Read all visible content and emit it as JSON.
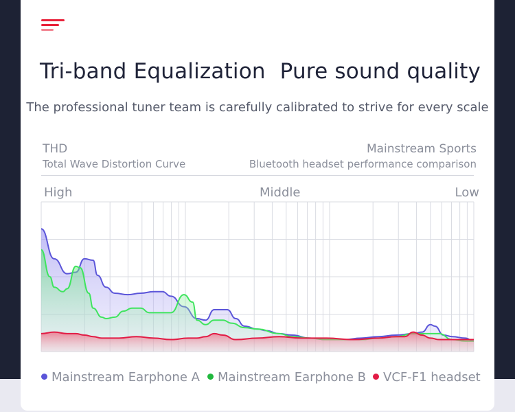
{
  "header": {
    "title_left": "Tri-band Equalization",
    "title_right": "Pure sound quality",
    "subtitle": "The professional tuner team is carefully calibrated to strive for every scale"
  },
  "info": {
    "left_title": "THD",
    "left_caption": "Total Wave Distortion Curve",
    "right_title": "Mainstream Sports",
    "right_caption": "Bluetooth headset performance comparison"
  },
  "chart_data": {
    "type": "area",
    "title": "",
    "band_labels": [
      "High",
      "Middle",
      "Low"
    ],
    "xlim": [
      0,
      100
    ],
    "ylim": [
      0,
      100
    ],
    "grid": true,
    "legend_position": "bottom",
    "series": [
      {
        "name": "Mainstream Earphone A",
        "color": "#5b55d9",
        "x": [
          0,
          3,
          6,
          8,
          10,
          12,
          13,
          15,
          17,
          20,
          23,
          26,
          28,
          30,
          33,
          36,
          38,
          40,
          43,
          45,
          47,
          50,
          52,
          55,
          58,
          62,
          66,
          70,
          74,
          78,
          82,
          86,
          88,
          90,
          91,
          93,
          95,
          98,
          100
        ],
        "y": [
          82,
          62,
          52,
          53,
          62,
          61,
          51,
          43,
          39,
          38,
          39,
          40,
          40,
          37,
          30,
          22,
          21,
          28,
          28,
          22,
          17,
          15,
          14,
          12,
          11,
          9,
          8,
          8,
          9,
          10,
          11,
          12,
          13,
          18,
          17,
          11,
          10,
          9,
          7
        ]
      },
      {
        "name": "Mainstream Earphone B",
        "color": "#3fe45e",
        "x": [
          0,
          2,
          3,
          5,
          6,
          8,
          9,
          11,
          12,
          14,
          15,
          17,
          19,
          21,
          23,
          25,
          27,
          30,
          33,
          35,
          36,
          38,
          40,
          42,
          44,
          47,
          50,
          55,
          58,
          62,
          66,
          70,
          74,
          78,
          82,
          86,
          89,
          92,
          95,
          98,
          100
        ],
        "y": [
          68,
          50,
          43,
          40,
          42,
          57,
          56,
          39,
          29,
          23,
          22,
          23,
          27,
          29,
          29,
          26,
          26,
          26,
          38,
          33,
          21,
          18,
          21,
          21,
          19,
          16,
          15,
          12,
          10,
          9,
          8,
          8,
          8,
          9,
          10,
          12,
          12,
          12,
          8,
          7,
          7
        ]
      },
      {
        "name": "VCF-F1 headset",
        "color": "#e21c45",
        "x": [
          0,
          3,
          6,
          8,
          10,
          12,
          14,
          18,
          22,
          26,
          30,
          34,
          36,
          38,
          40,
          42,
          45,
          50,
          55,
          60,
          66,
          72,
          78,
          82,
          84,
          86,
          88,
          90,
          92,
          94,
          100
        ],
        "y": [
          12,
          13,
          12,
          12,
          11,
          10,
          9,
          9,
          10,
          9,
          8,
          9,
          9,
          10,
          12,
          11,
          8,
          9,
          10,
          9,
          9,
          8,
          9,
          10,
          10,
          13,
          11,
          9,
          8,
          8,
          8
        ]
      }
    ]
  }
}
